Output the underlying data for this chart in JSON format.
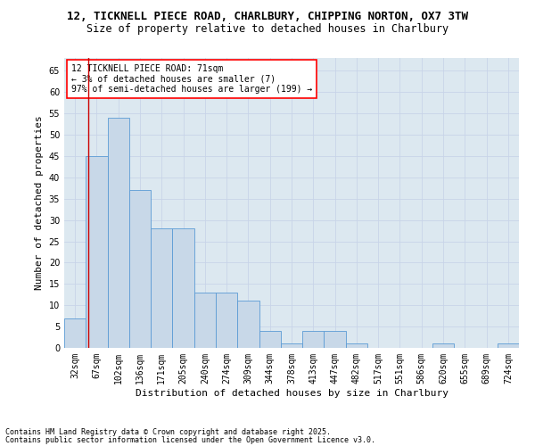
{
  "title_line1": "12, TICKNELL PIECE ROAD, CHARLBURY, CHIPPING NORTON, OX7 3TW",
  "title_line2": "Size of property relative to detached houses in Charlbury",
  "xlabel": "Distribution of detached houses by size in Charlbury",
  "ylabel": "Number of detached properties",
  "categories": [
    "32sqm",
    "67sqm",
    "102sqm",
    "136sqm",
    "171sqm",
    "205sqm",
    "240sqm",
    "274sqm",
    "309sqm",
    "344sqm",
    "378sqm",
    "413sqm",
    "447sqm",
    "482sqm",
    "517sqm",
    "551sqm",
    "586sqm",
    "620sqm",
    "655sqm",
    "689sqm",
    "724sqm"
  ],
  "values": [
    7,
    45,
    54,
    37,
    28,
    28,
    13,
    13,
    11,
    4,
    1,
    4,
    4,
    1,
    0,
    0,
    0,
    1,
    0,
    0,
    1
  ],
  "bar_color": "#c8d8e8",
  "bar_edge_color": "#5b9bd5",
  "annotation_text_line1": "12 TICKNELL PIECE ROAD: 71sqm",
  "annotation_text_line2": "← 3% of detached houses are smaller (7)",
  "annotation_text_line3": "97% of semi-detached houses are larger (199) →",
  "annotation_box_color": "white",
  "annotation_border_color": "red",
  "red_line_color": "#cc0000",
  "ylim": [
    0,
    68
  ],
  "yticks": [
    0,
    5,
    10,
    15,
    20,
    25,
    30,
    35,
    40,
    45,
    50,
    55,
    60,
    65
  ],
  "grid_color": "#c8d4e8",
  "bg_color": "#dce8f0",
  "footnote_line1": "Contains HM Land Registry data © Crown copyright and database right 2025.",
  "footnote_line2": "Contains public sector information licensed under the Open Government Licence v3.0.",
  "title_fontsize": 9,
  "subtitle_fontsize": 8.5,
  "axis_label_fontsize": 8,
  "tick_fontsize": 7,
  "annotation_fontsize": 7,
  "footnote_fontsize": 6
}
